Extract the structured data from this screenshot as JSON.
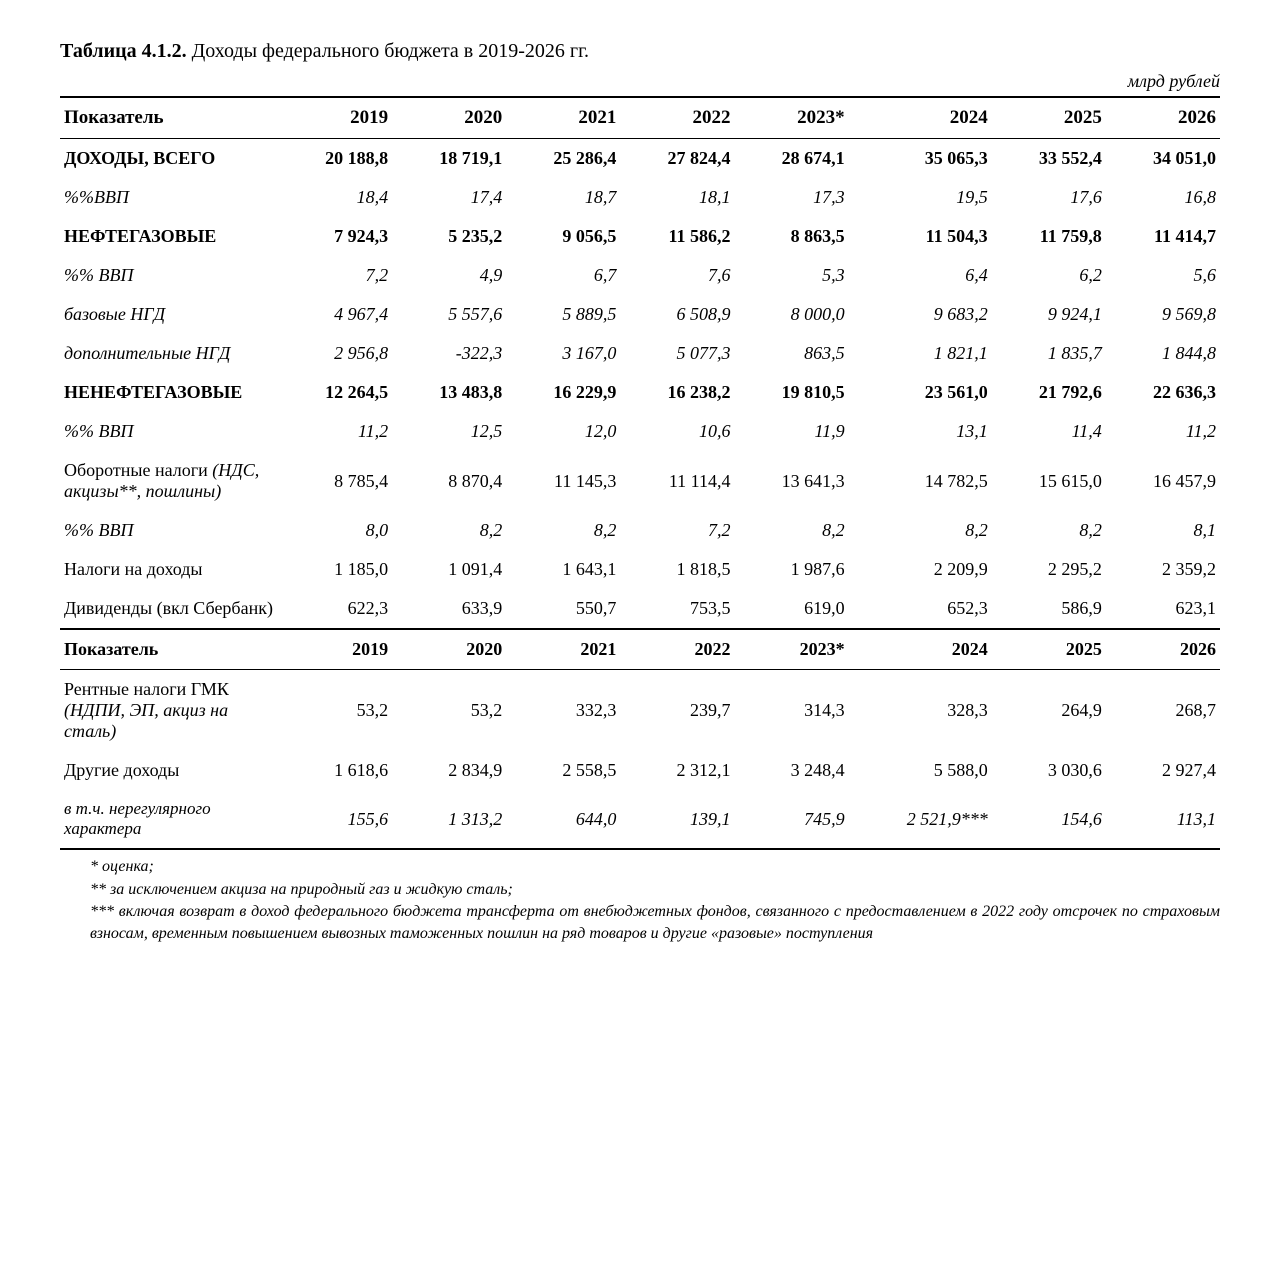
{
  "title_prefix": "Таблица 4.1.2.",
  "title_text": " Доходы федерального бюджета в 2019-2026 гг.",
  "unit_label": "млрд рублей",
  "header_label": "Показатель",
  "years": [
    "2019",
    "2020",
    "2021",
    "2022",
    "2023*",
    "2024",
    "2025",
    "2026"
  ],
  "rows_a": [
    {
      "label": "ДОХОДЫ, ВСЕГО",
      "vals": [
        "20 188,8",
        "18 719,1",
        "25 286,4",
        "27 824,4",
        "28 674,1",
        "35 065,3",
        "33 552,4",
        "34 051,0"
      ],
      "cls": "bold"
    },
    {
      "label": "%%ВВП",
      "vals": [
        "18,4",
        "17,4",
        "18,7",
        "18,1",
        "17,3",
        "19,5",
        "17,6",
        "16,8"
      ],
      "cls": "italic"
    },
    {
      "label": "НЕФТЕГАЗОВЫЕ",
      "vals": [
        "7 924,3",
        "5 235,2",
        "9 056,5",
        "11 586,2",
        "8 863,5",
        "11 504,3",
        "11 759,8",
        "11 414,7"
      ],
      "cls": "bold"
    },
    {
      "label": "%% ВВП",
      "vals": [
        "7,2",
        "4,9",
        "6,7",
        "7,6",
        "5,3",
        "6,4",
        "6,2",
        "5,6"
      ],
      "cls": "italic"
    },
    {
      "label": "базовые НГД",
      "vals": [
        "4 967,4",
        "5 557,6",
        "5 889,5",
        "6 508,9",
        "8 000,0",
        "9 683,2",
        "9 924,1",
        "9 569,8"
      ],
      "cls": "italic"
    },
    {
      "label": "дополнительные НГД",
      "vals": [
        "2 956,8",
        "-322,3",
        "3 167,0",
        "5 077,3",
        "863,5",
        "1 821,1",
        "1 835,7",
        "1 844,8"
      ],
      "cls": "italic"
    },
    {
      "label": "НЕНЕФТЕГАЗОВЫЕ",
      "vals": [
        "12 264,5",
        "13 483,8",
        "16 229,9",
        "16 238,2",
        "19 810,5",
        "23 561,0",
        "21 792,6",
        "22 636,3"
      ],
      "cls": "bold"
    },
    {
      "label": "%% ВВП",
      "vals": [
        "11,2",
        "12,5",
        "12,0",
        "10,6",
        "11,9",
        "13,1",
        "11,4",
        "11,2"
      ],
      "cls": "italic"
    },
    {
      "label": "Оборотные налоги <span style='font-style:italic'>(НДС, акцизы**, пошлины)</span>",
      "vals": [
        "8 785,4",
        "8 870,4",
        "11 145,3",
        "11 114,4",
        "13 641,3",
        "14 782,5",
        "15 615,0",
        "16 457,9"
      ],
      "cls": "",
      "html": true
    },
    {
      "label": "%% ВВП",
      "vals": [
        "8,0",
        "8,2",
        "8,2",
        "7,2",
        "8,2",
        "8,2",
        "8,2",
        "8,1"
      ],
      "cls": "italic"
    },
    {
      "label": "Налоги на доходы",
      "vals": [
        "1 185,0",
        "1 091,4",
        "1 643,1",
        "1 818,5",
        "1 987,6",
        "2 209,9",
        "2 295,2",
        "2 359,2"
      ],
      "cls": ""
    },
    {
      "label": "Дивиденды (вкл Сбербанк)",
      "vals": [
        "622,3",
        "633,9",
        "550,7",
        "753,5",
        "619,0",
        "652,3",
        "586,9",
        "623,1"
      ],
      "cls": ""
    }
  ],
  "rows_b": [
    {
      "label": "Рентные налоги ГМК <span style='font-style:italic'>(НДПИ, ЭП, акциз на сталь)</span>",
      "vals": [
        "53,2",
        "53,2",
        "332,3",
        "239,7",
        "314,3",
        "328,3",
        "264,9",
        "268,7"
      ],
      "cls": "",
      "html": true
    },
    {
      "label": "Другие доходы",
      "vals": [
        "1 618,6",
        "2 834,9",
        "2 558,5",
        "2 312,1",
        "3 248,4",
        "5 588,0",
        "3 030,6",
        "2 927,4"
      ],
      "cls": ""
    },
    {
      "label": "в т.ч. нерегулярного характера",
      "vals": [
        "155,6",
        "1 313,2",
        "644,0",
        "139,1",
        "745,9",
        "2 521,9***",
        "154,6",
        "113,1"
      ],
      "cls": "italic sm"
    }
  ],
  "footnotes": [
    "* оценка;",
    "** за исключением акциза на природный газ и жидкую сталь;",
    "*** включая возврат в доход федерального бюджета трансферта от внебюджетных фондов, связанного с предоставлением в 2022 году отсрочек по страховым взносам, временным повышением вывозных таможенных пошлин на ряд товаров и другие «разовые» поступления"
  ]
}
